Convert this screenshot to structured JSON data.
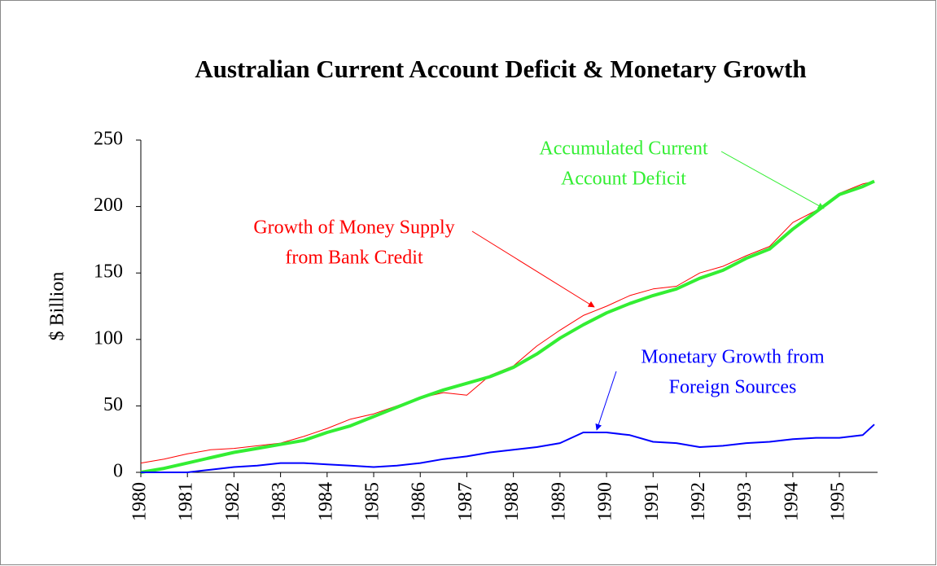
{
  "chart_data": {
    "type": "line",
    "title": "Australian Current Account Deficit & Monetary Growth",
    "y_label": "$ Billion",
    "x": [
      1980,
      1980.5,
      1981,
      1981.5,
      1982,
      1982.5,
      1983,
      1983.5,
      1984,
      1984.5,
      1985,
      1985.5,
      1986,
      1986.5,
      1987,
      1987.5,
      1988,
      1988.5,
      1989,
      1989.5,
      1990,
      1990.5,
      1991,
      1991.5,
      1992,
      1992.5,
      1993,
      1993.5,
      1994,
      1994.5,
      1995,
      1995.5,
      1995.75
    ],
    "series": [
      {
        "name": "Growth of Money Supply from Bank Credit",
        "color": "#ff0000",
        "width": 1,
        "annotation": [
          "Growth of Money Supply",
          "from Bank Credit"
        ],
        "values": [
          7,
          10,
          14,
          17,
          18,
          20,
          22,
          27,
          33,
          40,
          44,
          50,
          56,
          60,
          58,
          73,
          80,
          95,
          107,
          118,
          125,
          133,
          138,
          140,
          150,
          155,
          163,
          170,
          188,
          197,
          210,
          217,
          219
        ]
      },
      {
        "name": "Accumulated Current Account Deficit",
        "color": "#33ee33",
        "width": 4,
        "annotation": [
          "Accumulated Current",
          "Account Deficit"
        ],
        "values": [
          0,
          3,
          7,
          11,
          15,
          18,
          21,
          24,
          30,
          35,
          42,
          49,
          56,
          62,
          67,
          72,
          79,
          89,
          101,
          111,
          120,
          127,
          133,
          138,
          146,
          152,
          161,
          168,
          183,
          196,
          209,
          215,
          219
        ]
      },
      {
        "name": "Monetary Growth from Foreign Sources",
        "color": "#0000ff",
        "width": 2,
        "annotation": [
          "Monetary Growth from",
          "Foreign Sources"
        ],
        "values": [
          0,
          0,
          0,
          2,
          4,
          5,
          7,
          7,
          6,
          5,
          4,
          5,
          7,
          10,
          12,
          15,
          17,
          19,
          22,
          30,
          30,
          28,
          23,
          22,
          19,
          20,
          22,
          23,
          25,
          26,
          26,
          28,
          36
        ]
      }
    ],
    "xlim": [
      1980,
      1995.82
    ],
    "xticks": [
      1980,
      1981,
      1982,
      1983,
      1984,
      1985,
      1986,
      1987,
      1988,
      1989,
      1990,
      1991,
      1992,
      1993,
      1994,
      1995
    ],
    "ylim": [
      0,
      250
    ],
    "yticks": [
      0,
      50,
      100,
      150,
      200,
      250
    ]
  }
}
